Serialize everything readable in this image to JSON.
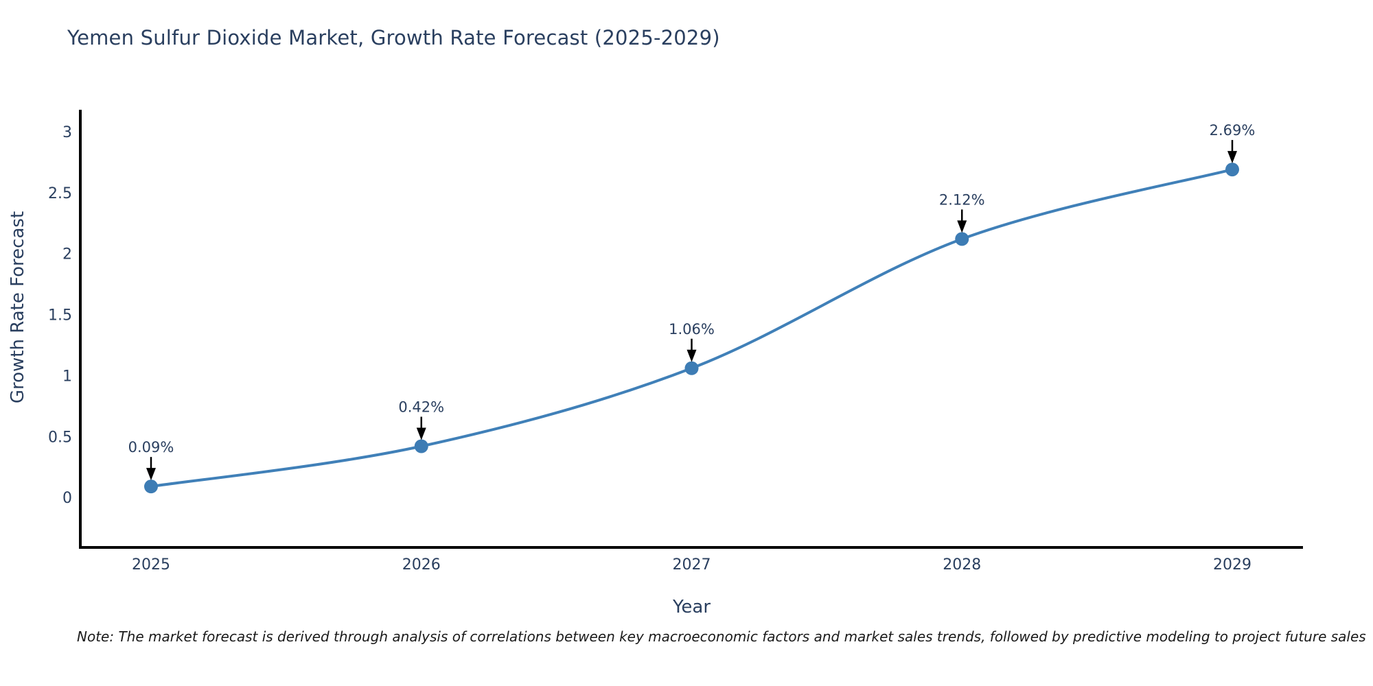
{
  "title": "Yemen Sulfur Dioxide Market, Growth Rate Forecast (2025-2029)",
  "note": "Note: The market forecast is derived through analysis of correlations between key macroeconomic factors and market sales trends, followed by predictive modeling to project future sales",
  "chart_data": {
    "type": "line",
    "line_shape": "spline",
    "title": "Yemen Sulfur Dioxide Market, Growth Rate Forecast (2025-2029)",
    "xlabel": "Year",
    "ylabel": "Growth Rate Forecast",
    "x": [
      "2025",
      "2026",
      "2027",
      "2028",
      "2029"
    ],
    "values": [
      0.09,
      0.42,
      1.06,
      2.12,
      2.69
    ],
    "point_labels": [
      "0.09%",
      "0.42%",
      "1.06%",
      "2.12%",
      "2.69%"
    ],
    "yticks": [
      0,
      0.5,
      1,
      1.5,
      2,
      2.5,
      3
    ],
    "ylim": [
      -0.41,
      3.18
    ],
    "grid": false,
    "legend": "none",
    "colors": {
      "line": "#4080b8",
      "marker": "#3d7cb4",
      "axis": "#000000",
      "tick_text": "#2a3f5f",
      "annotation_text": "#2a3f5f",
      "arrow": "#000000",
      "title_text": "#2a3f5f"
    }
  }
}
